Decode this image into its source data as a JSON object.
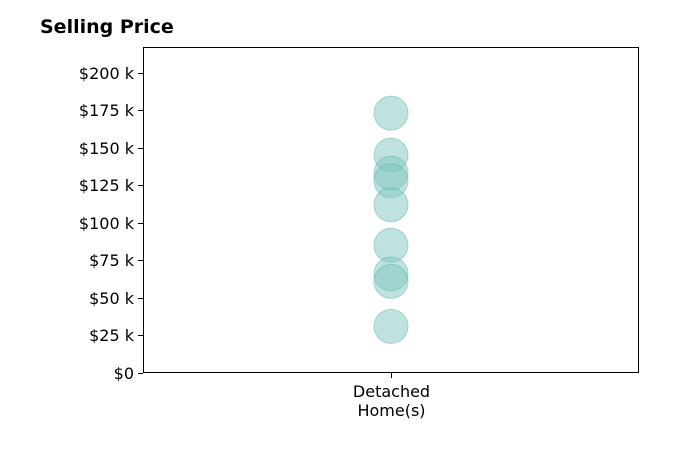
{
  "chart_data": {
    "type": "scatter",
    "title": "Selling Price",
    "xlabel": "",
    "ylabel": "",
    "categories": [
      "Detached\nHome(s)"
    ],
    "y_ticks": [
      "$0",
      "$25 k",
      "$50 k",
      "$75 k",
      "$100 k",
      "$125 k",
      "$150 k",
      "$175 k",
      "$200 k"
    ],
    "ylim": [
      0,
      217000
    ],
    "grid": false,
    "legend": "none",
    "series": [
      {
        "category": "Detached\nHome(s)",
        "values": [
          173000,
          145000,
          133000,
          128000,
          112000,
          85000,
          66000,
          61000,
          31000
        ]
      }
    ],
    "colors": {
      "marker_fill": "#7fc6c0",
      "marker_stroke": "#5eb3ac"
    }
  }
}
